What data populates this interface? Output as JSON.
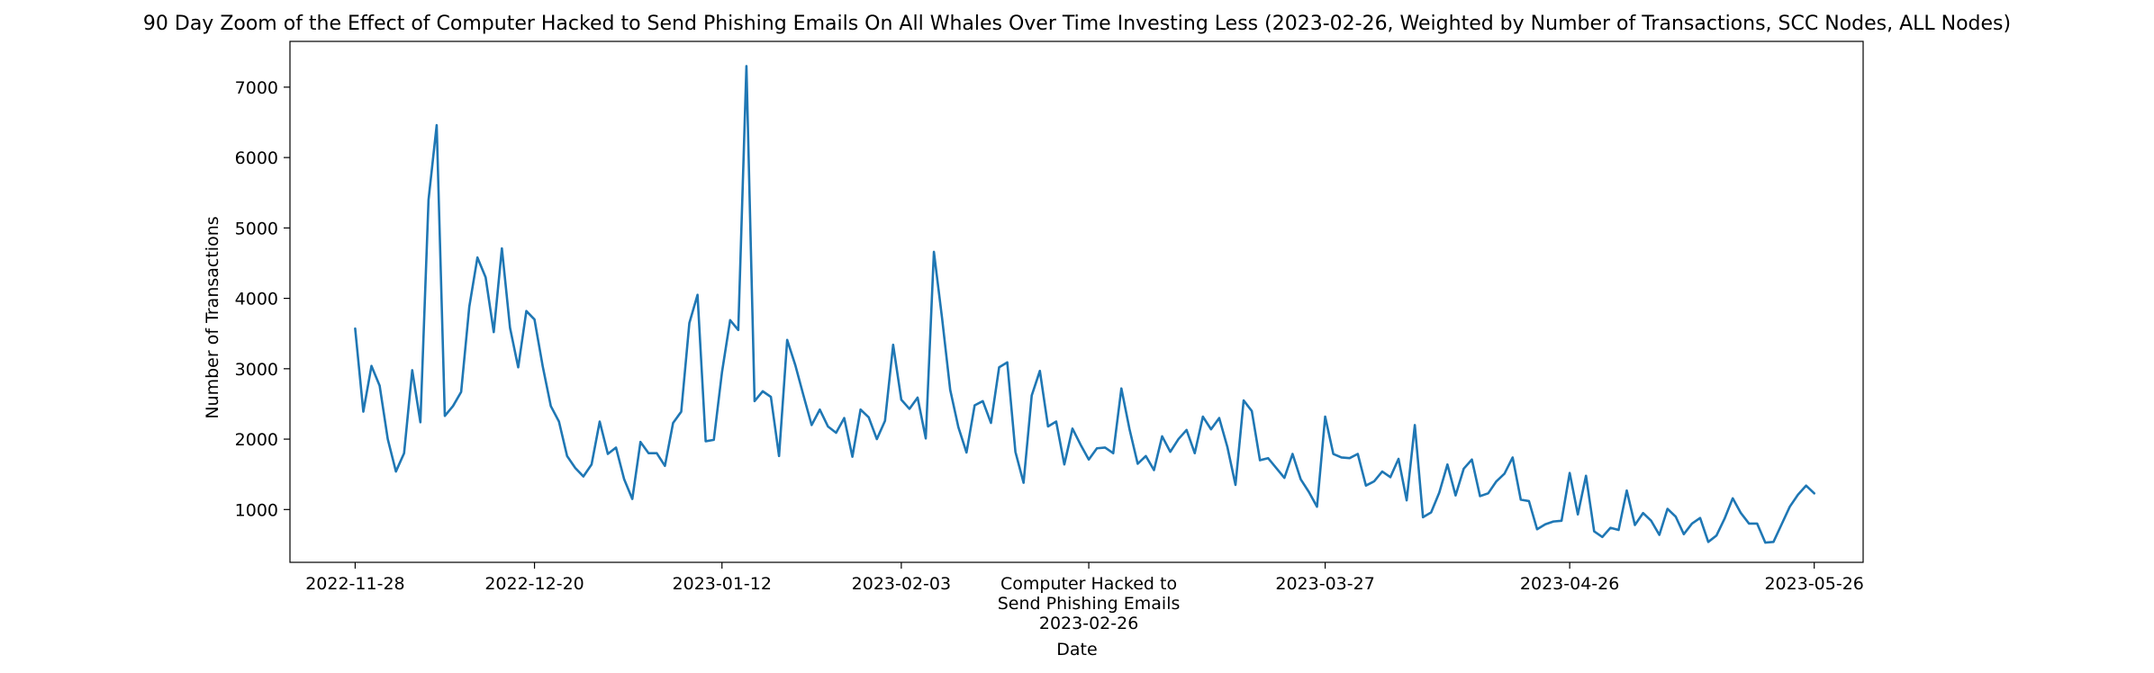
{
  "chart_data": {
    "type": "line",
    "title": "90 Day Zoom of the Effect of Computer Hacked to Send Phishing Emails On All Whales Over Time Investing Less (2023-02-26, Weighted by Number of Transactions, SCC Nodes, ALL Nodes)",
    "xlabel": "Date",
    "ylabel": "Number of Transactions",
    "x_range": [
      "2022-11-20",
      "2023-06-01"
    ],
    "ylim": [
      250,
      7650
    ],
    "yticks": [
      1000,
      2000,
      3000,
      4000,
      5000,
      6000,
      7000
    ],
    "xtick_dates": [
      "2022-11-28",
      "2022-12-20",
      "2023-01-12",
      "2023-02-03",
      "2023-02-26",
      "2023-03-27",
      "2023-04-26",
      "2023-05-26"
    ],
    "xtick_labels": [
      "2022-11-28",
      "2022-12-20",
      "2023-01-12",
      "2023-02-03",
      "Computer Hacked to\nSend Phishing Emails\n2023-02-26",
      "2023-03-27",
      "2023-04-26",
      "2023-05-26"
    ],
    "grid": false,
    "legend": "none",
    "color": "#1f77b4",
    "start_date": "2022-11-28",
    "values": [
      3570,
      2390,
      3040,
      2760,
      2000,
      1540,
      1800,
      2980,
      2240,
      5400,
      6460,
      2330,
      2470,
      2670,
      3880,
      4580,
      4300,
      3520,
      4710,
      3580,
      3020,
      3820,
      3700,
      3040,
      2470,
      2250,
      1760,
      1590,
      1470,
      1640,
      2250,
      1790,
      1880,
      1430,
      1150,
      1960,
      1800,
      1800,
      1620,
      2230,
      2390,
      3650,
      4050,
      1970,
      1990,
      2950,
      3690,
      3550,
      7300,
      2540,
      2680,
      2600,
      1760,
      3410,
      3050,
      2620,
      2200,
      2420,
      2180,
      2090,
      2300,
      1750,
      2420,
      2310,
      2000,
      2260,
      3340,
      2560,
      2430,
      2590,
      2010,
      4660,
      3720,
      2700,
      2170,
      1810,
      2480,
      2540,
      2230,
      3020,
      3090,
      1820,
      1380,
      2620,
      2970,
      2180,
      2250,
      1640,
      2150,
      1920,
      1710,
      1870,
      1880,
      1800,
      2720,
      2140,
      1650,
      1760,
      1560,
      2040,
      1820,
      2000,
      2130,
      1800,
      2320,
      2140,
      2300,
      1890,
      1350,
      2550,
      2400,
      1700,
      1730,
      1590,
      1450,
      1790,
      1430,
      1250,
      1040,
      2320,
      1790,
      1740,
      1730,
      1790,
      1340,
      1400,
      1540,
      1460,
      1720,
      1130,
      2200,
      890,
      960,
      1240,
      1640,
      1200,
      1580,
      1710,
      1190,
      1230,
      1400,
      1510,
      1740,
      1140,
      1120,
      720,
      790,
      830,
      840,
      1520,
      930,
      1480,
      690,
      610,
      740,
      710,
      1270,
      780,
      950,
      840,
      640,
      1010,
      900,
      650,
      800,
      880,
      540,
      630,
      870,
      1160,
      950,
      800,
      800,
      530,
      540,
      790,
      1040,
      1210,
      1340,
      1230
    ]
  }
}
